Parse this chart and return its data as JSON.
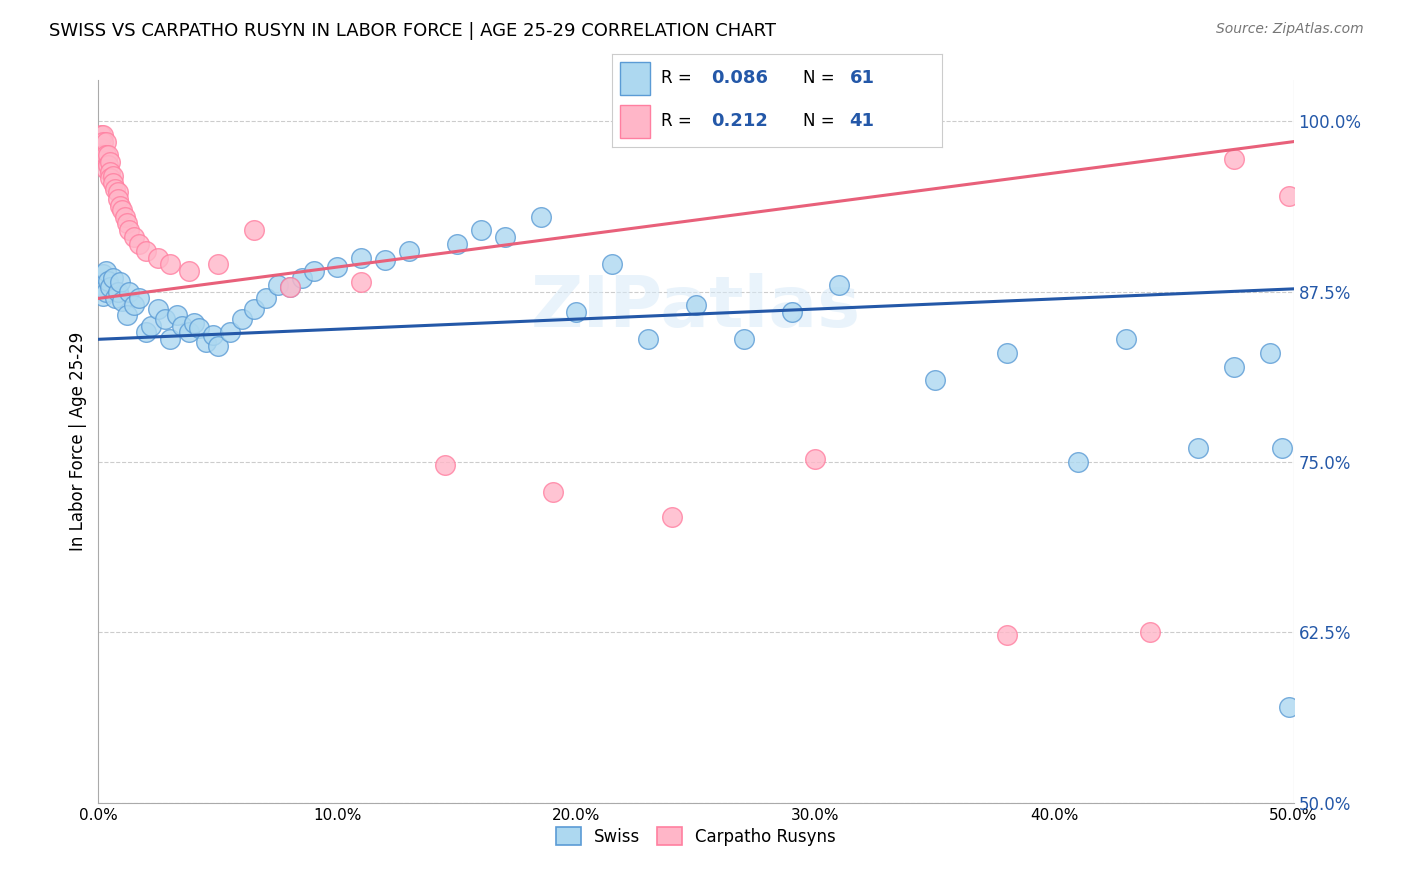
{
  "title": "SWISS VS CARPATHO RUSYN IN LABOR FORCE | AGE 25-29 CORRELATION CHART",
  "source": "Source: ZipAtlas.com",
  "ylabel": "In Labor Force | Age 25-29",
  "xlim": [
    0.0,
    0.5
  ],
  "ylim": [
    0.5,
    1.03
  ],
  "xtick_labels": [
    "0.0%",
    "10.0%",
    "20.0%",
    "30.0%",
    "40.0%",
    "50.0%"
  ],
  "xtick_values": [
    0.0,
    0.1,
    0.2,
    0.3,
    0.4,
    0.5
  ],
  "ytick_labels_right": [
    "100.0%",
    "87.5%",
    "75.0%",
    "62.5%",
    "50.0%"
  ],
  "ytick_values_right": [
    1.0,
    0.875,
    0.75,
    0.625,
    0.5
  ],
  "legend_R_swiss": "0.086",
  "legend_N_swiss": "61",
  "legend_R_rusyn": "0.212",
  "legend_N_rusyn": "41",
  "swiss_color": "#ADD8F0",
  "rusyn_color": "#FFB6C8",
  "swiss_edge_color": "#5B9BD5",
  "rusyn_edge_color": "#FF7FA0",
  "trend_swiss_color": "#2458A8",
  "trend_rusyn_color": "#E8607A",
  "swiss_trend_x0": 0.0,
  "swiss_trend_y0": 0.84,
  "swiss_trend_x1": 0.5,
  "swiss_trend_y1": 0.877,
  "rusyn_trend_x0": 0.0,
  "rusyn_trend_y0": 0.87,
  "rusyn_trend_x1": 0.5,
  "rusyn_trend_y1": 0.985,
  "swiss_x": [
    0.001,
    0.002,
    0.002,
    0.003,
    0.003,
    0.004,
    0.005,
    0.006,
    0.007,
    0.008,
    0.009,
    0.01,
    0.012,
    0.013,
    0.015,
    0.017,
    0.02,
    0.022,
    0.025,
    0.028,
    0.03,
    0.033,
    0.035,
    0.038,
    0.04,
    0.042,
    0.045,
    0.048,
    0.05,
    0.055,
    0.06,
    0.065,
    0.07,
    0.075,
    0.08,
    0.085,
    0.09,
    0.1,
    0.11,
    0.12,
    0.13,
    0.15,
    0.16,
    0.17,
    0.185,
    0.2,
    0.215,
    0.23,
    0.25,
    0.27,
    0.29,
    0.31,
    0.35,
    0.38,
    0.41,
    0.43,
    0.46,
    0.475,
    0.49,
    0.495,
    0.498
  ],
  "swiss_y": [
    0.88,
    0.872,
    0.888,
    0.875,
    0.89,
    0.883,
    0.878,
    0.885,
    0.87,
    0.875,
    0.882,
    0.868,
    0.858,
    0.875,
    0.865,
    0.87,
    0.845,
    0.85,
    0.862,
    0.855,
    0.84,
    0.858,
    0.85,
    0.845,
    0.852,
    0.848,
    0.838,
    0.843,
    0.835,
    0.845,
    0.855,
    0.862,
    0.87,
    0.88,
    0.878,
    0.885,
    0.89,
    0.893,
    0.9,
    0.898,
    0.905,
    0.91,
    0.92,
    0.915,
    0.93,
    0.86,
    0.895,
    0.84,
    0.865,
    0.84,
    0.86,
    0.88,
    0.81,
    0.83,
    0.75,
    0.84,
    0.76,
    0.82,
    0.83,
    0.76,
    0.57
  ],
  "rusyn_x": [
    0.001,
    0.001,
    0.002,
    0.002,
    0.002,
    0.003,
    0.003,
    0.003,
    0.004,
    0.004,
    0.005,
    0.005,
    0.005,
    0.006,
    0.006,
    0.007,
    0.008,
    0.008,
    0.009,
    0.01,
    0.011,
    0.012,
    0.013,
    0.015,
    0.017,
    0.02,
    0.025,
    0.03,
    0.038,
    0.05,
    0.065,
    0.08,
    0.11,
    0.145,
    0.19,
    0.24,
    0.3,
    0.38,
    0.44,
    0.475,
    0.498
  ],
  "rusyn_y": [
    0.99,
    0.98,
    0.99,
    0.985,
    0.975,
    0.985,
    0.975,
    0.965,
    0.975,
    0.968,
    0.97,
    0.963,
    0.958,
    0.96,
    0.955,
    0.95,
    0.948,
    0.943,
    0.938,
    0.935,
    0.93,
    0.925,
    0.92,
    0.915,
    0.91,
    0.905,
    0.9,
    0.895,
    0.89,
    0.895,
    0.92,
    0.878,
    0.882,
    0.748,
    0.728,
    0.71,
    0.752,
    0.623,
    0.625,
    0.972,
    0.945
  ]
}
